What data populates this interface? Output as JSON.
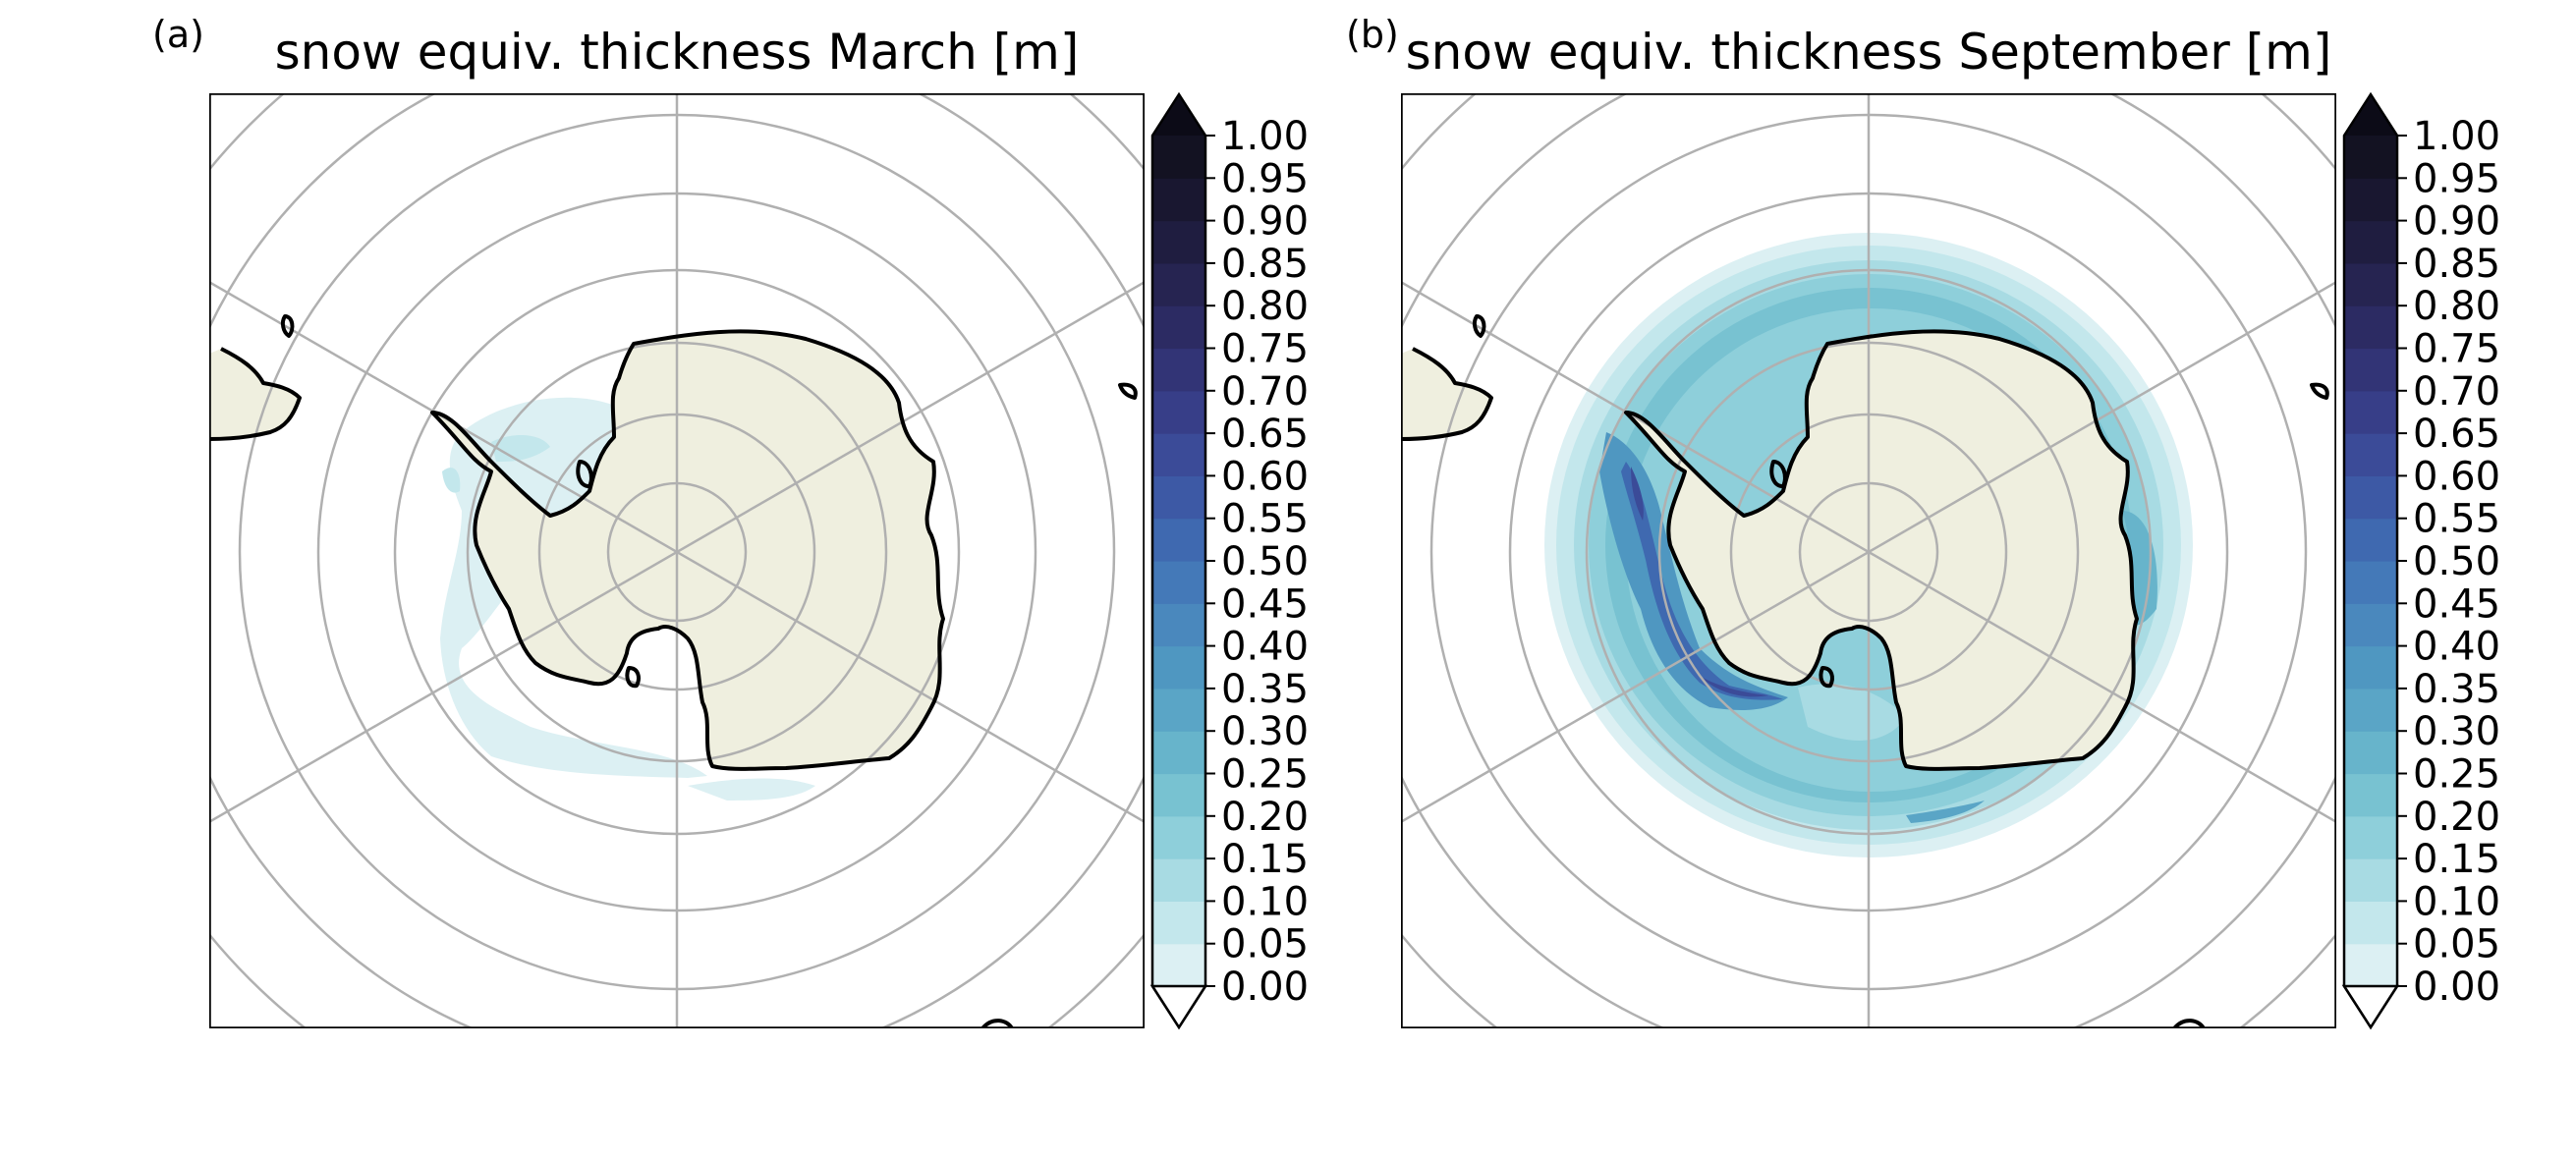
{
  "figure": {
    "panels": [
      {
        "label": "(a)",
        "title": "snow equiv. thickness March [m]",
        "month": "March",
        "snow_distribution": "Thin ice-edge snow cover (about 0.00–0.10 m) confined to the Weddell Sea and along the west Antarctic Peninsula; remainder of ocean ice-free."
      },
      {
        "label": "(b)",
        "title": "snow equiv. thickness September [m]",
        "month": "September",
        "snow_distribution": "Snow on sea ice surrounding the whole continent, mostly 0.15–0.30 m; maximum (about 0.50–0.75 m) along the Bellingshausen/Amundsen coast and in the western Weddell Sea."
      }
    ],
    "colorbar": {
      "ticks": [
        "1.00",
        "0.95",
        "0.90",
        "0.85",
        "0.80",
        "0.75",
        "0.70",
        "0.65",
        "0.60",
        "0.55",
        "0.50",
        "0.45",
        "0.40",
        "0.35",
        "0.30",
        "0.25",
        "0.20",
        "0.15",
        "0.10",
        "0.05",
        "0.00"
      ],
      "levels": [
        0.0,
        0.05,
        0.1,
        0.15,
        0.2,
        0.25,
        0.3,
        0.35,
        0.4,
        0.45,
        0.5,
        0.55,
        0.6,
        0.65,
        0.7,
        0.75,
        0.8,
        0.85,
        0.9,
        0.95,
        1.0
      ],
      "colors": [
        "#dcf0f3",
        "#c3e7ec",
        "#a8dbe3",
        "#8ecfda",
        "#78c2d1",
        "#67b4cb",
        "#5aa5c6",
        "#4f97c1",
        "#4a88bd",
        "#4479b8",
        "#3f69b0",
        "#3d59a5",
        "#3b4b98",
        "#373e88",
        "#323476",
        "#2c2b63",
        "#262451",
        "#1f1d40",
        "#191730",
        "#131222"
      ],
      "over_color": "#0c0b17",
      "under_color": "#ffffff",
      "extend": "both"
    },
    "map_style": {
      "land_color": "#efefdf",
      "coast_color": "#000000",
      "gridline_color": "#b0b0b0",
      "ocean_color": "#ffffff",
      "projection": "South Polar Stereographic"
    }
  }
}
